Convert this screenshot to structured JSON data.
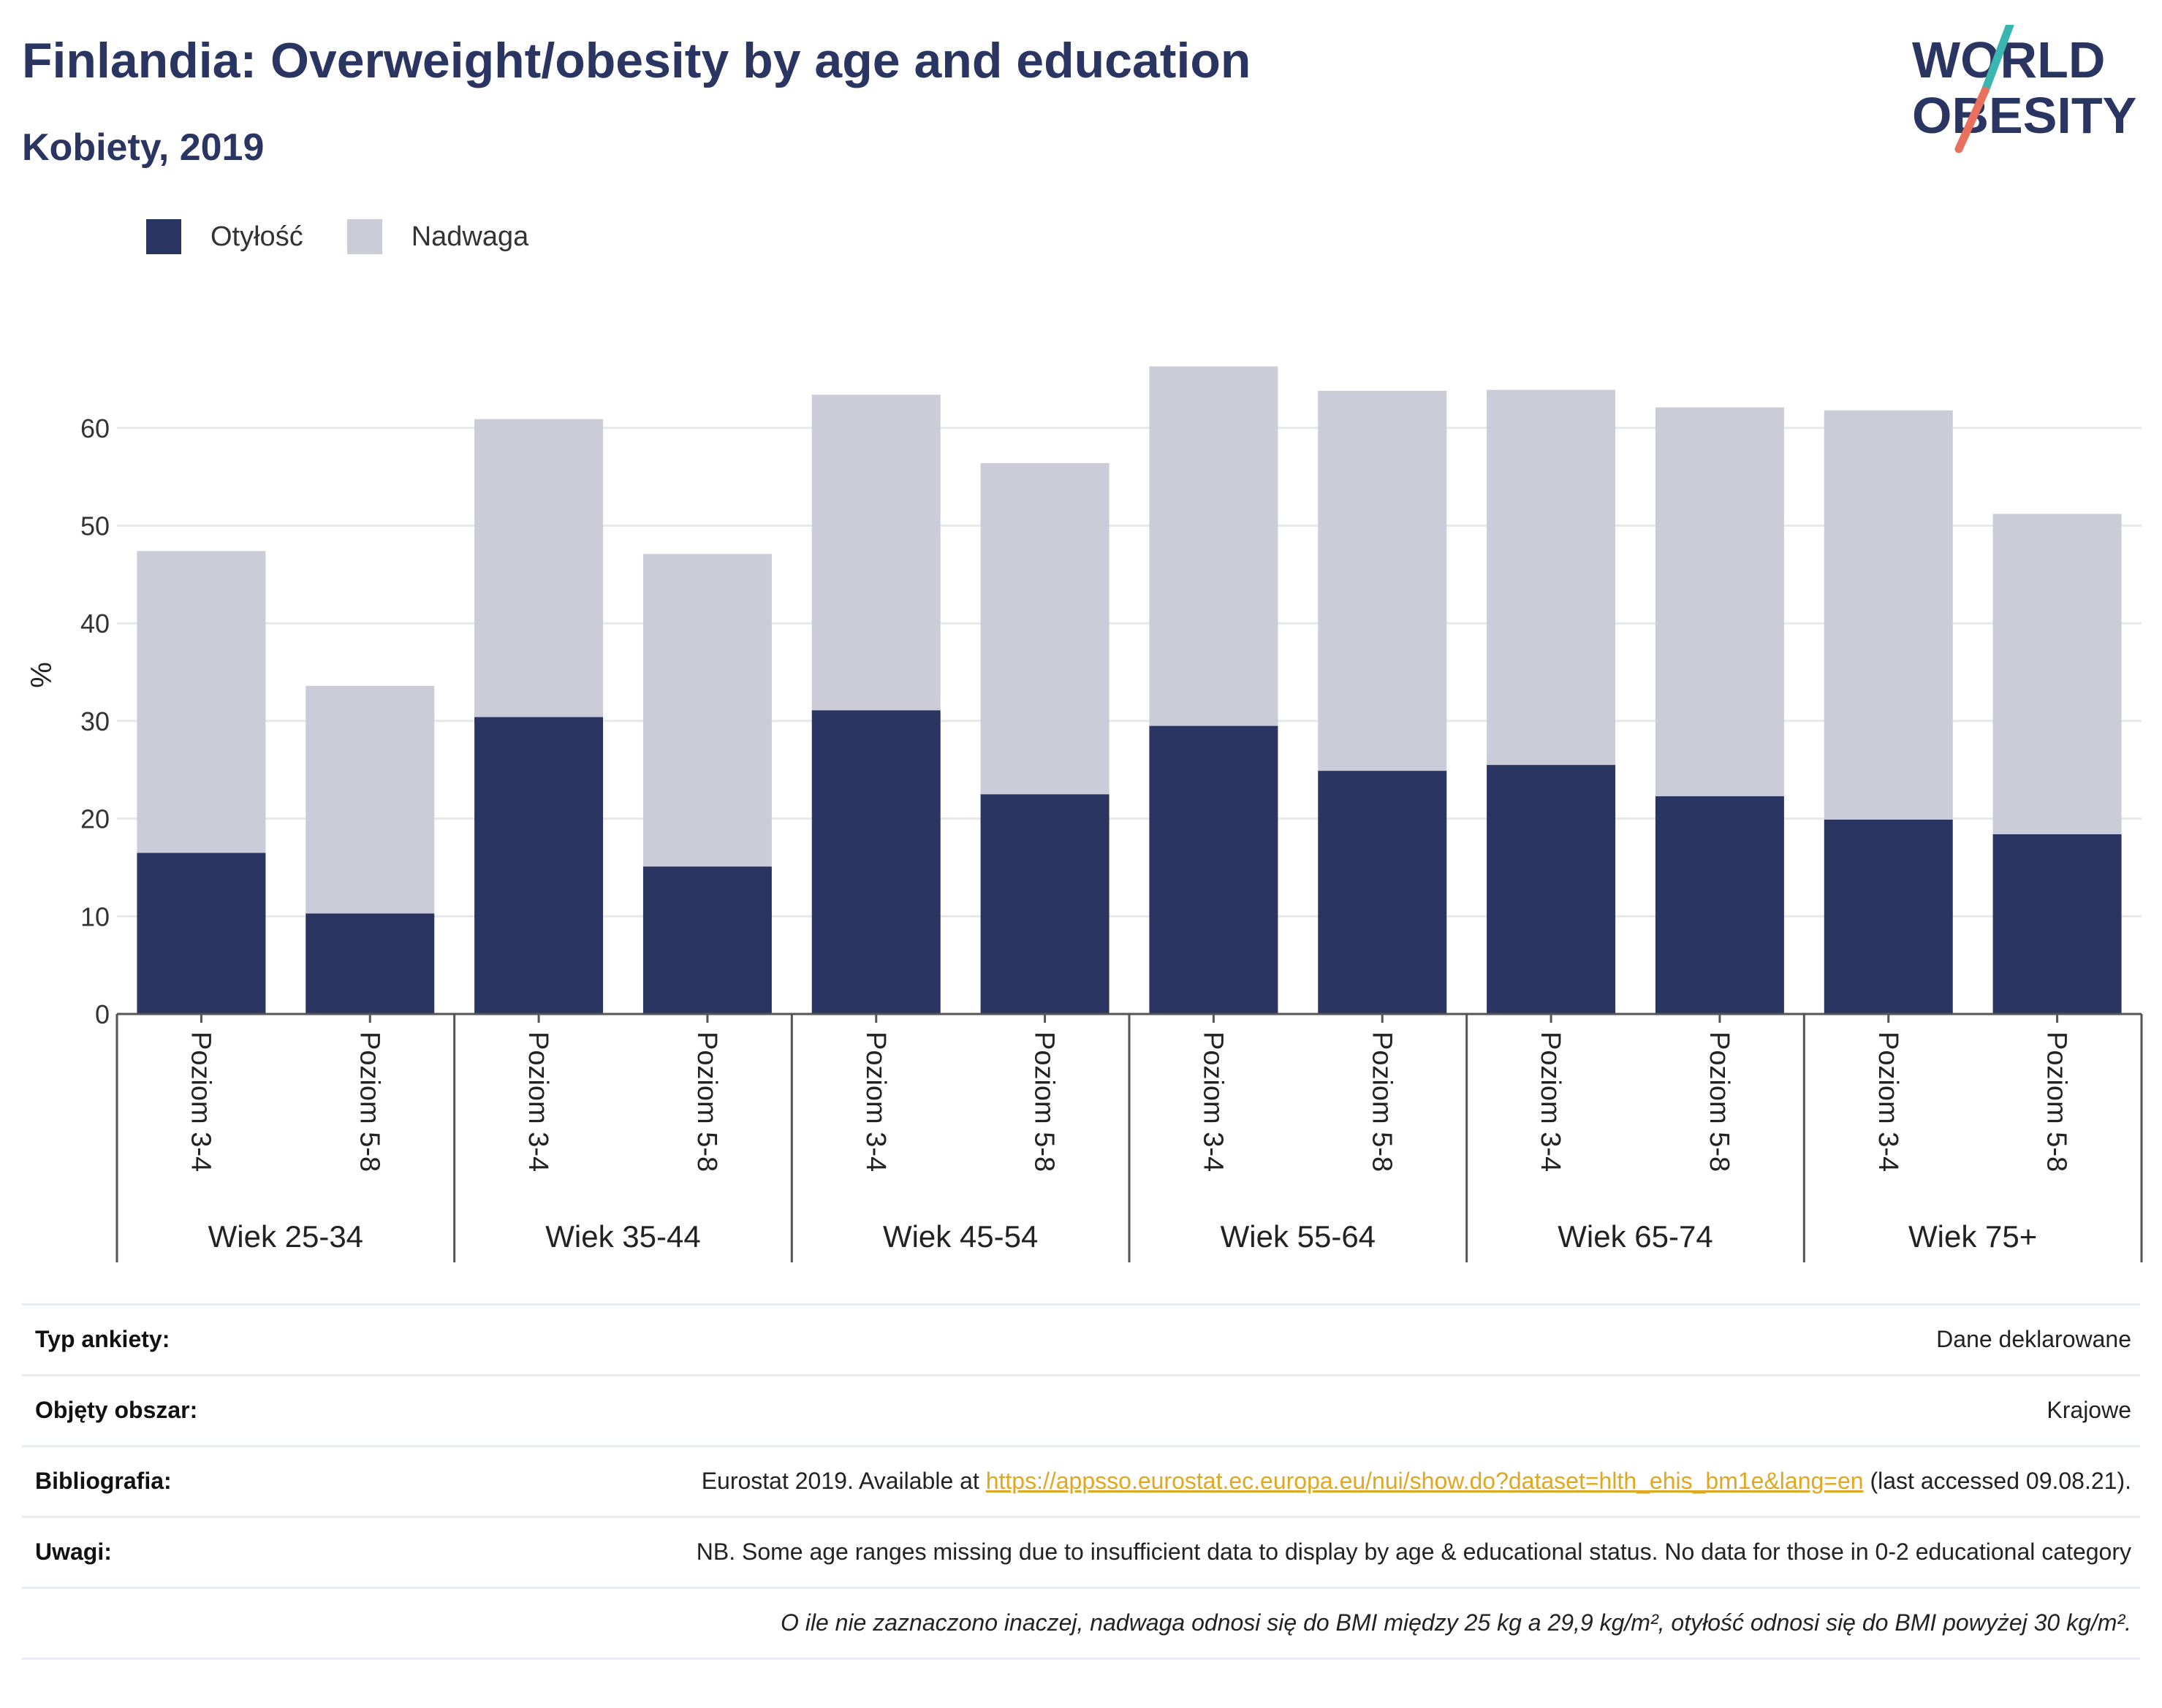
{
  "header": {
    "title": "Finlandia: Overweight/obesity by age and education",
    "subtitle": "Kobiety, 2019"
  },
  "logo": {
    "line1": "WORLD",
    "line2": "OBESITY"
  },
  "legend": {
    "obesity_label": "Otyłość",
    "overweight_label": "Nadwaga",
    "obesity_color": "#2b3561",
    "overweight_color": "#cbccd8"
  },
  "chart_data": {
    "type": "bar",
    "stacked": true,
    "ylabel": "%",
    "ylim": [
      0,
      70
    ],
    "yticks": [
      0,
      10,
      20,
      30,
      40,
      50,
      60
    ],
    "grid": true,
    "legend_position": "top-left",
    "groups": [
      {
        "label": "Wiek 25-34",
        "categories": [
          "Poziom 3-4",
          "Poziom 5-8"
        ]
      },
      {
        "label": "Wiek 35-44",
        "categories": [
          "Poziom 3-4",
          "Poziom 5-8"
        ]
      },
      {
        "label": "Wiek 45-54",
        "categories": [
          "Poziom 3-4",
          "Poziom 5-8"
        ]
      },
      {
        "label": "Wiek 55-64",
        "categories": [
          "Poziom 3-4",
          "Poziom 5-8"
        ]
      },
      {
        "label": "Wiek 65-74",
        "categories": [
          "Poziom 3-4",
          "Poziom 5-8"
        ]
      },
      {
        "label": "Wiek 75+",
        "categories": [
          "Poziom 3-4",
          "Poziom 5-8"
        ]
      }
    ],
    "series": [
      {
        "name": "Otyłość",
        "color": "#2b3561",
        "values": [
          16.5,
          10.3,
          30.4,
          15.1,
          31.1,
          22.5,
          29.5,
          24.9,
          25.5,
          22.3,
          19.9,
          18.4
        ]
      },
      {
        "name": "Nadwaga",
        "color": "#cbccd8",
        "values": [
          30.9,
          23.3,
          30.5,
          32.0,
          32.3,
          33.9,
          36.8,
          38.9,
          38.4,
          39.8,
          41.9,
          32.8
        ]
      }
    ]
  },
  "info": {
    "survey_type_label": "Typ ankiety:",
    "survey_type_value": "Dane deklarowane",
    "coverage_label": "Objęty obszar:",
    "coverage_value": "Krajowe",
    "bibliography_label": "Bibliografia:",
    "bibliography_prefix": "Eurostat 2019. Available at ",
    "bibliography_link": "https://appsso.eurostat.ec.europa.eu/nui/show.do?dataset=hlth_ehis_bm1e&lang=en",
    "bibliography_suffix": " (last accessed 09.08.21).",
    "notes_label": "Uwagi:",
    "notes_value": "NB. Some age ranges missing due to insufficient data to display by age & educational status. No data for those in 0-2 educational category",
    "definition": "O ile nie zaznaczono inaczej, nadwaga odnosi się do BMI między 25 kg a 29,9 kg/m², otyłość odnosi się do BMI powyżej 30 kg/m²."
  }
}
